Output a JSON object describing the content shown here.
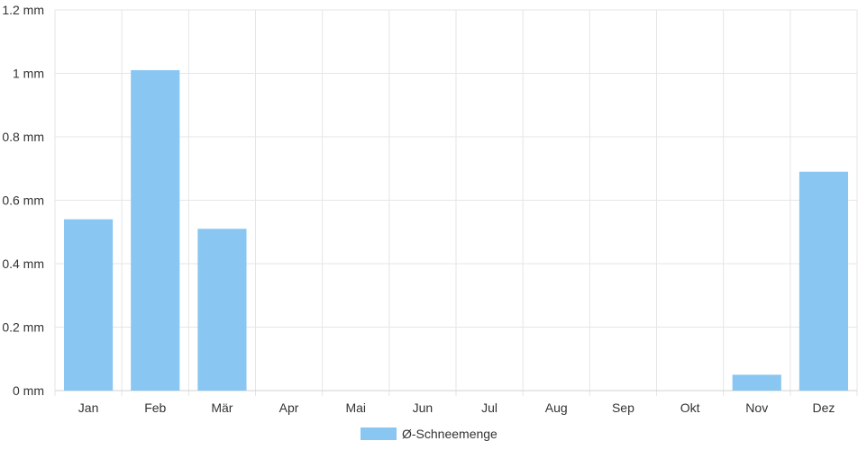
{
  "chart_data": {
    "type": "bar",
    "categories": [
      "Jan",
      "Feb",
      "Mär",
      "Apr",
      "Mai",
      "Jun",
      "Jul",
      "Aug",
      "Sep",
      "Okt",
      "Nov",
      "Dez"
    ],
    "series": [
      {
        "name": "Ø-Schneemenge",
        "values": [
          0.54,
          1.01,
          0.51,
          0,
          0,
          0,
          0,
          0,
          0,
          0,
          0.05,
          0.69
        ],
        "color": "#89c6f2"
      }
    ],
    "y_ticks": [
      "0 mm",
      "0.2 mm",
      "0.4 mm",
      "0.6 mm",
      "0.8 mm",
      "1 mm",
      "1.2 mm"
    ],
    "y_unit": "mm",
    "ylim": [
      0,
      1.2
    ],
    "grid": true,
    "legend_position": "bottom-center"
  }
}
